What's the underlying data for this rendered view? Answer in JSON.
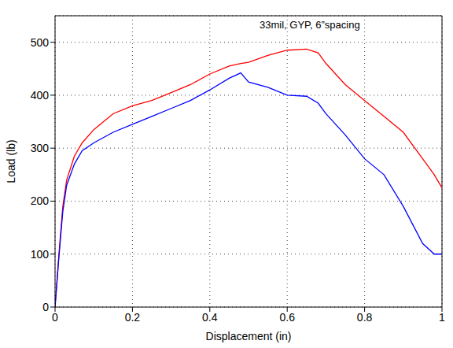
{
  "chart_data": {
    "type": "line",
    "annotation": "33mil, GYP, 6”spacing",
    "x_label": "Displacement (in)",
    "y_label": "Load (lb)",
    "x": [
      0,
      0.01,
      0.02,
      0.03,
      0.05,
      0.07,
      0.1,
      0.15,
      0.2,
      0.25,
      0.3,
      0.35,
      0.4,
      0.45,
      0.48,
      0.5,
      0.55,
      0.6,
      0.65,
      0.68,
      0.7,
      0.75,
      0.8,
      0.85,
      0.9,
      0.95,
      0.98,
      1
    ],
    "series": [
      {
        "color": "#ff0000",
        "values": [
          0,
          100,
          190,
          240,
          285,
          310,
          335,
          365,
          380,
          390,
          405,
          420,
          440,
          455,
          460,
          462,
          475,
          485,
          487,
          480,
          460,
          420,
          390,
          360,
          330,
          280,
          250,
          225
        ]
      },
      {
        "color": "#0000ff",
        "values": [
          0,
          95,
          180,
          230,
          270,
          295,
          310,
          330,
          345,
          360,
          375,
          390,
          410,
          432,
          442,
          425,
          415,
          400,
          398,
          385,
          365,
          325,
          280,
          250,
          190,
          120,
          100,
          100
        ]
      }
    ],
    "xlim": [
      0,
      1
    ],
    "ylim": [
      0,
      550
    ],
    "xticks": [
      0,
      0.2,
      0.4,
      0.6,
      0.8,
      1
    ],
    "yticks": [
      0,
      100,
      200,
      300,
      400,
      500
    ],
    "grid": true
  }
}
